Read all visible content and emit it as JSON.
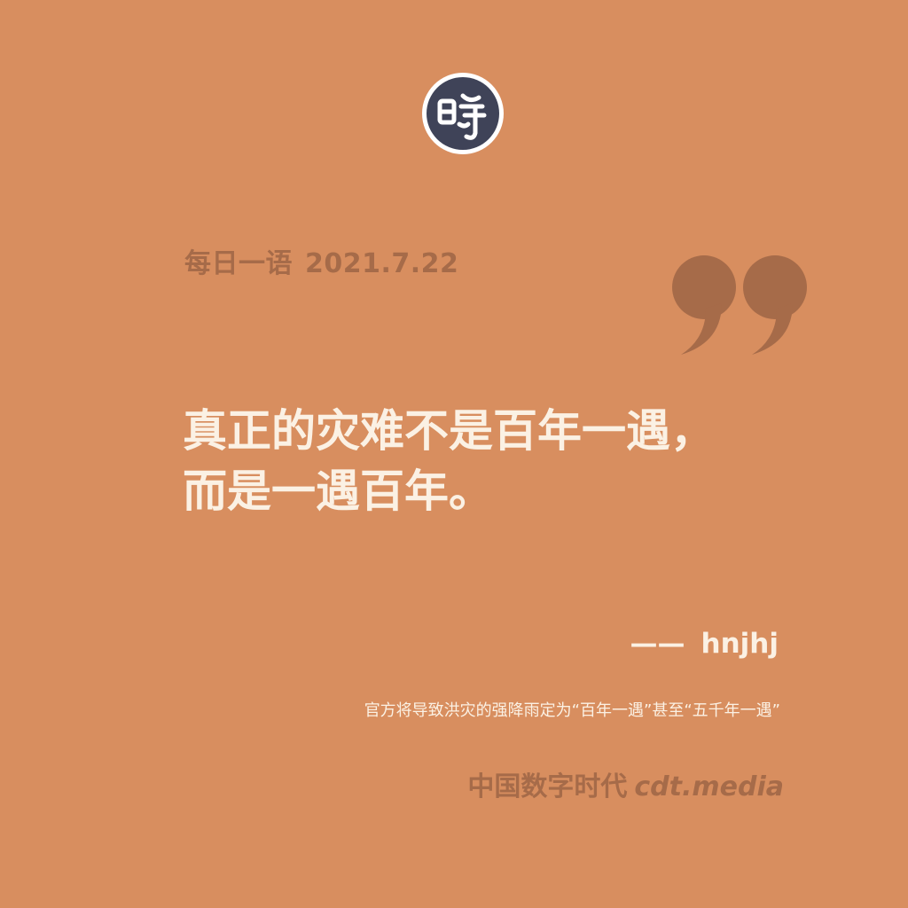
{
  "logo": {
    "icon": "cdt-seal-icon",
    "glyph": "时",
    "colors": {
      "ring": "#ffffff",
      "fill": "#3f4358",
      "glyph": "#ffffff"
    }
  },
  "header": {
    "label": "每日一语",
    "date": "2021.7.22"
  },
  "quote": {
    "icon": "closing-quote-icon",
    "lines": [
      "真正的灾难不是百年一遇，",
      "而是一遇百年。"
    ]
  },
  "attribution": {
    "dash": "——",
    "author": "hnjhj"
  },
  "note": "官方将导致洪灾的强降雨定为“百年一遇”甚至“五千年一遇”",
  "footer": {
    "brand": "中国数字时代",
    "domain": "cdt.media"
  },
  "colors": {
    "background": "#d88e5f",
    "accent": "#a66b49",
    "text_light": "#fbf1e4"
  }
}
